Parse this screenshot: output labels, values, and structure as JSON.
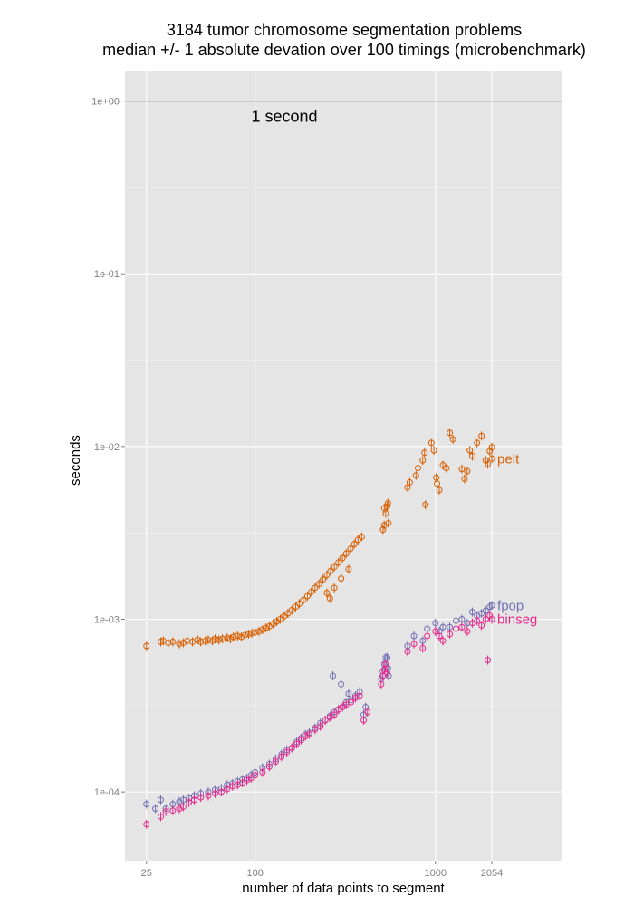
{
  "chart_data": {
    "type": "scatter",
    "title": "3184 tumor chromosome segmentation problems",
    "subtitle": "median +/- 1 absolute devation over 100 timings (microbenchmark)",
    "xlabel": "number of data points to segment",
    "ylabel": "seconds",
    "x_scale": "log10",
    "y_scale": "log10",
    "xlim": [
      19,
      5000
    ],
    "ylim": [
      4e-05,
      1.5
    ],
    "x_ticks": [
      25,
      100,
      1000,
      2054
    ],
    "x_tick_labels": [
      "25",
      "100",
      "1000",
      "2054"
    ],
    "y_ticks": [
      1,
      0.1,
      0.01,
      0.001,
      0.0001
    ],
    "y_tick_labels": [
      "1e+00",
      "1e-01",
      "1e-02",
      "1e-03",
      "1e-04"
    ],
    "grid": true,
    "reference_line": {
      "y": 1,
      "label": "1 second"
    },
    "series": [
      {
        "name": "pelt",
        "color": "#d95f02",
        "points": [
          [
            25,
            0.0007
          ],
          [
            30,
            0.00074
          ],
          [
            31,
            0.00075
          ],
          [
            33,
            0.00073
          ],
          [
            35,
            0.00074
          ],
          [
            38,
            0.00072
          ],
          [
            40,
            0.00073
          ],
          [
            42,
            0.00075
          ],
          [
            45,
            0.00074
          ],
          [
            48,
            0.00076
          ],
          [
            50,
            0.00074
          ],
          [
            53,
            0.00075
          ],
          [
            55,
            0.00076
          ],
          [
            58,
            0.00075
          ],
          [
            60,
            0.00077
          ],
          [
            63,
            0.00076
          ],
          [
            66,
            0.00077
          ],
          [
            70,
            0.00078
          ],
          [
            73,
            0.00077
          ],
          [
            76,
            0.00079
          ],
          [
            80,
            0.0008
          ],
          [
            84,
            0.00079
          ],
          [
            88,
            0.00081
          ],
          [
            92,
            0.00082
          ],
          [
            96,
            0.00083
          ],
          [
            100,
            0.00084
          ],
          [
            105,
            0.00085
          ],
          [
            110,
            0.00087
          ],
          [
            115,
            0.00089
          ],
          [
            120,
            0.00091
          ],
          [
            126,
            0.00094
          ],
          [
            132,
            0.00097
          ],
          [
            138,
            0.001
          ],
          [
            145,
            0.00104
          ],
          [
            152,
            0.00108
          ],
          [
            160,
            0.00113
          ],
          [
            168,
            0.00118
          ],
          [
            176,
            0.00123
          ],
          [
            185,
            0.00129
          ],
          [
            195,
            0.00136
          ],
          [
            205,
            0.00144
          ],
          [
            215,
            0.00152
          ],
          [
            226,
            0.0016
          ],
          [
            238,
            0.0017
          ],
          [
            250,
            0.0018
          ],
          [
            262,
            0.0019
          ],
          [
            275,
            0.00201
          ],
          [
            290,
            0.00213
          ],
          [
            305,
            0.00226
          ],
          [
            320,
            0.0024
          ],
          [
            338,
            0.00256
          ],
          [
            355,
            0.00272
          ],
          [
            372,
            0.00288
          ],
          [
            390,
            0.003
          ],
          [
            250,
            0.00142
          ],
          [
            260,
            0.00132
          ],
          [
            275,
            0.00152
          ],
          [
            300,
            0.00172
          ],
          [
            330,
            0.00195
          ],
          [
            512,
            0.0033
          ],
          [
            520,
            0.0035
          ],
          [
            530,
            0.0041
          ],
          [
            540,
            0.0045
          ],
          [
            545,
            0.0047
          ],
          [
            520,
            0.0044
          ],
          [
            548,
            0.0036
          ],
          [
            700,
            0.0058
          ],
          [
            720,
            0.0062
          ],
          [
            780,
            0.0068
          ],
          [
            800,
            0.0075
          ],
          [
            850,
            0.0083
          ],
          [
            870,
            0.0092
          ],
          [
            880,
            0.0046
          ],
          [
            950,
            0.0105
          ],
          [
            980,
            0.0095
          ],
          [
            1010,
            0.0066
          ],
          [
            1020,
            0.0061
          ],
          [
            1050,
            0.0056
          ],
          [
            1100,
            0.0078
          ],
          [
            1150,
            0.0075
          ],
          [
            1200,
            0.012
          ],
          [
            1250,
            0.011
          ],
          [
            1400,
            0.0074
          ],
          [
            1450,
            0.0065
          ],
          [
            1500,
            0.0072
          ],
          [
            1550,
            0.0095
          ],
          [
            1600,
            0.0088
          ],
          [
            1700,
            0.0105
          ],
          [
            1800,
            0.0115
          ],
          [
            1900,
            0.0083
          ],
          [
            1950,
            0.0079
          ],
          [
            2000,
            0.0094
          ],
          [
            2054,
            0.0099
          ],
          [
            2054,
            0.0085
          ]
        ]
      },
      {
        "name": "fpop",
        "color": "#7570b3",
        "points": [
          [
            25,
            8.5e-05
          ],
          [
            28,
            8e-05
          ],
          [
            30,
            9e-05
          ],
          [
            32,
            8e-05
          ],
          [
            35,
            8.5e-05
          ],
          [
            38,
            8.8e-05
          ],
          [
            40,
            9e-05
          ],
          [
            43,
            9.2e-05
          ],
          [
            46,
            9.5e-05
          ],
          [
            50,
            9.8e-05
          ],
          [
            55,
            0.0001
          ],
          [
            60,
            0.000103
          ],
          [
            65,
            0.000105
          ],
          [
            70,
            0.00011
          ],
          [
            75,
            0.000112
          ],
          [
            80,
            0.000115
          ],
          [
            85,
            0.000118
          ],
          [
            90,
            0.00012
          ],
          [
            95,
            0.000125
          ],
          [
            100,
            0.00013
          ],
          [
            110,
            0.000138
          ],
          [
            120,
            0.000145
          ],
          [
            130,
            0.000155
          ],
          [
            140,
            0.000165
          ],
          [
            150,
            0.000175
          ],
          [
            160,
            0.00018
          ],
          [
            170,
            0.000195
          ],
          [
            180,
            0.000205
          ],
          [
            190,
            0.000215
          ],
          [
            200,
            0.00022
          ],
          [
            215,
            0.000235
          ],
          [
            230,
            0.00025
          ],
          [
            245,
            0.00026
          ],
          [
            260,
            0.000275
          ],
          [
            275,
            0.00029
          ],
          [
            290,
            0.0003
          ],
          [
            305,
            0.00031
          ],
          [
            320,
            0.00033
          ],
          [
            340,
            0.00034
          ],
          [
            360,
            0.00036
          ],
          [
            380,
            0.00038
          ],
          [
            270,
            0.00047
          ],
          [
            300,
            0.00042
          ],
          [
            330,
            0.00037
          ],
          [
            400,
            0.00028
          ],
          [
            410,
            0.00031
          ],
          [
            500,
            0.00045
          ],
          [
            510,
            0.0005
          ],
          [
            520,
            0.00055
          ],
          [
            530,
            0.0006
          ],
          [
            540,
            0.0006
          ],
          [
            545,
            0.00052
          ],
          [
            550,
            0.00047
          ],
          [
            700,
            0.0007
          ],
          [
            760,
            0.0008
          ],
          [
            850,
            0.00075
          ],
          [
            900,
            0.00088
          ],
          [
            1000,
            0.00095
          ],
          [
            1050,
            0.00085
          ],
          [
            1100,
            0.0009
          ],
          [
            1200,
            0.0009
          ],
          [
            1300,
            0.00098
          ],
          [
            1400,
            0.001
          ],
          [
            1500,
            0.00095
          ],
          [
            1600,
            0.0011
          ],
          [
            1700,
            0.00105
          ],
          [
            1800,
            0.00108
          ],
          [
            1900,
            0.00112
          ],
          [
            2000,
            0.00118
          ],
          [
            2054,
            0.0012
          ]
        ]
      },
      {
        "name": "binseg",
        "color": "#e7298a",
        "points": [
          [
            25,
            6.5e-05
          ],
          [
            30,
            7.2e-05
          ],
          [
            32,
            7.7e-05
          ],
          [
            35,
            7.8e-05
          ],
          [
            38,
            8e-05
          ],
          [
            40,
            8.2e-05
          ],
          [
            43,
            8.7e-05
          ],
          [
            46,
            9e-05
          ],
          [
            50,
            9.3e-05
          ],
          [
            55,
            9.5e-05
          ],
          [
            60,
            9.8e-05
          ],
          [
            65,
            0.0001
          ],
          [
            70,
            0.000104
          ],
          [
            75,
            0.000108
          ],
          [
            80,
            0.00011
          ],
          [
            85,
            0.000113
          ],
          [
            90,
            0.000117
          ],
          [
            95,
            0.00012
          ],
          [
            100,
            0.000125
          ],
          [
            110,
            0.00013
          ],
          [
            120,
            0.00014
          ],
          [
            130,
            0.00015
          ],
          [
            140,
            0.00016
          ],
          [
            150,
            0.00017
          ],
          [
            160,
            0.00018
          ],
          [
            170,
            0.00019
          ],
          [
            180,
            0.0002
          ],
          [
            190,
            0.00021
          ],
          [
            200,
            0.000215
          ],
          [
            215,
            0.00023
          ],
          [
            230,
            0.00024
          ],
          [
            245,
            0.00026
          ],
          [
            260,
            0.00027
          ],
          [
            275,
            0.00028
          ],
          [
            290,
            0.0003
          ],
          [
            305,
            0.00031
          ],
          [
            320,
            0.00032
          ],
          [
            340,
            0.00033
          ],
          [
            360,
            0.00035
          ],
          [
            380,
            0.00036
          ],
          [
            400,
            0.00026
          ],
          [
            420,
            0.00029
          ],
          [
            500,
            0.00042
          ],
          [
            510,
            0.00047
          ],
          [
            520,
            0.00051
          ],
          [
            530,
            0.00055
          ],
          [
            540,
            0.00049
          ],
          [
            700,
            0.00065
          ],
          [
            760,
            0.00072
          ],
          [
            850,
            0.00068
          ],
          [
            900,
            0.0008
          ],
          [
            1000,
            0.00085
          ],
          [
            1050,
            0.0008
          ],
          [
            1100,
            0.00075
          ],
          [
            1200,
            0.00082
          ],
          [
            1300,
            0.00088
          ],
          [
            1400,
            0.0009
          ],
          [
            1500,
            0.00085
          ],
          [
            1600,
            0.00095
          ],
          [
            1700,
            0.00098
          ],
          [
            1800,
            0.00092
          ],
          [
            1900,
            0.001
          ],
          [
            1950,
            0.00058
          ],
          [
            2000,
            0.00105
          ],
          [
            2054,
            0.001
          ]
        ]
      }
    ]
  }
}
